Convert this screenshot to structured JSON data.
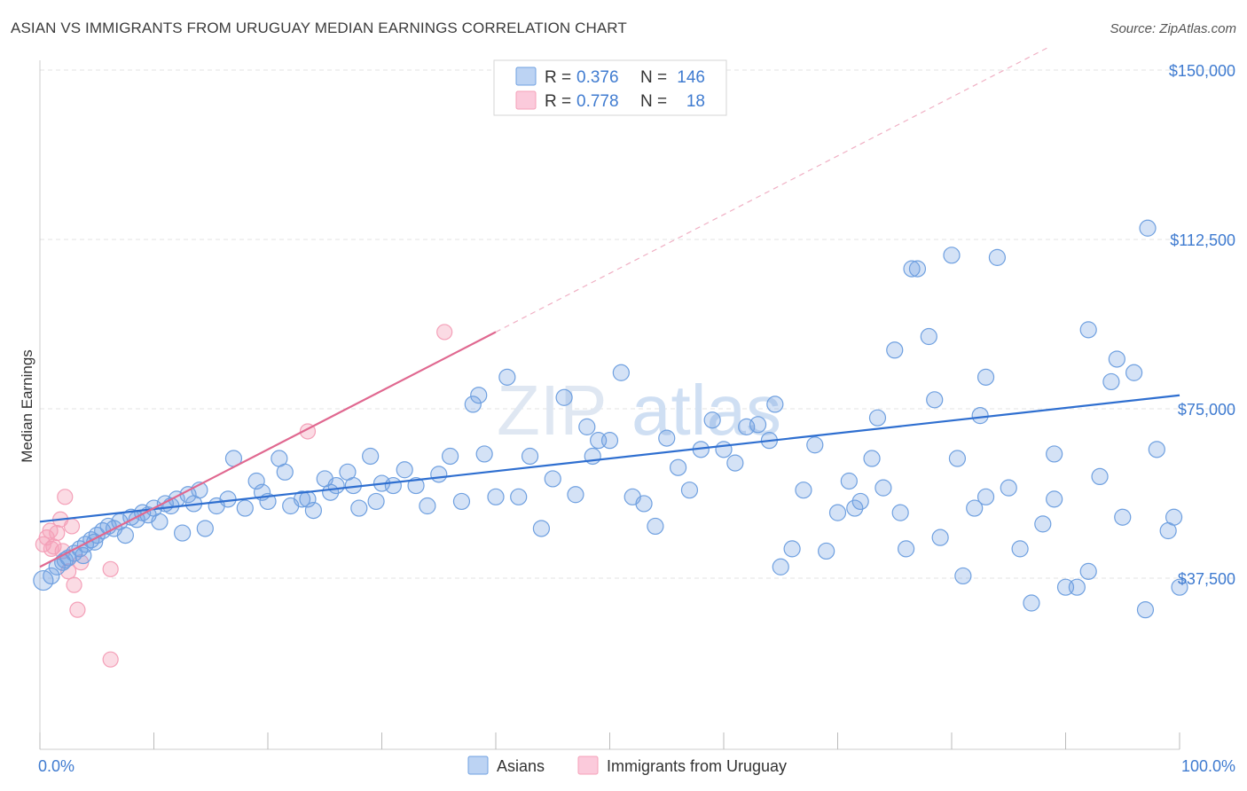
{
  "title": "ASIAN VS IMMIGRANTS FROM URUGUAY MEDIAN EARNINGS CORRELATION CHART",
  "source": "Source: ZipAtlas.com",
  "watermark": {
    "zip": "ZIP",
    "atlas": "atlas"
  },
  "colors": {
    "asian": "#6fa0e0",
    "asian_line": "#2f6fd0",
    "uruguay": "#f4a0b8",
    "uruguay_line": "#e06890"
  },
  "legend": {
    "r_label": "R =",
    "n_label": "N =",
    "asian": {
      "r": "0.376",
      "n": "146"
    },
    "uruguay": {
      "r": "0.778",
      "n": "18"
    }
  },
  "chart_data": {
    "type": "scatter",
    "title": "ASIAN VS IMMIGRANTS FROM URUGUAY MEDIAN EARNINGS CORRELATION CHART",
    "xlabel": "",
    "ylabel": "Median Earnings",
    "xlim": [
      0,
      100
    ],
    "ylim": [
      0,
      155000
    ],
    "x_tick_labels": [
      "0.0%",
      "100.0%"
    ],
    "y_ticks": [
      {
        "value": 37500,
        "label": "$37,500"
      },
      {
        "value": 75000,
        "label": "$75,000"
      },
      {
        "value": 112500,
        "label": "$112,500"
      },
      {
        "value": 150000,
        "label": "$150,000"
      }
    ],
    "series": [
      {
        "name": "Asians",
        "trend": {
          "x0": 0,
          "y0": 50000,
          "x1": 100,
          "y1": 78000
        },
        "points": [
          [
            0.3,
            37000
          ],
          [
            1,
            38000
          ],
          [
            1.5,
            40000
          ],
          [
            2,
            41000
          ],
          [
            2.5,
            42000
          ],
          [
            3,
            43000
          ],
          [
            3.5,
            44000
          ],
          [
            4,
            45000
          ],
          [
            4.5,
            46000
          ],
          [
            5,
            47000
          ],
          [
            5.5,
            48000
          ],
          [
            6,
            49000
          ],
          [
            7,
            50000
          ],
          [
            8,
            51000
          ],
          [
            9,
            52000
          ],
          [
            10,
            53000
          ],
          [
            11,
            54000
          ],
          [
            12,
            55000
          ],
          [
            13,
            56000
          ],
          [
            14,
            57000
          ],
          [
            2.2,
            41500
          ],
          [
            3.8,
            42500
          ],
          [
            4.8,
            45500
          ],
          [
            6.5,
            48500
          ],
          [
            7.5,
            47000
          ],
          [
            8.5,
            50500
          ],
          [
            9.5,
            51500
          ],
          [
            10.5,
            50000
          ],
          [
            11.5,
            53500
          ],
          [
            12.5,
            47500
          ],
          [
            13.5,
            54000
          ],
          [
            14.5,
            48500
          ],
          [
            15.5,
            53500
          ],
          [
            16.5,
            55000
          ],
          [
            17,
            64000
          ],
          [
            18,
            53000
          ],
          [
            19,
            59000
          ],
          [
            19.5,
            56500
          ],
          [
            20,
            54500
          ],
          [
            21,
            64000
          ],
          [
            21.5,
            61000
          ],
          [
            22,
            53500
          ],
          [
            23,
            55000
          ],
          [
            23.5,
            55000
          ],
          [
            24,
            52500
          ],
          [
            25,
            59500
          ],
          [
            25.5,
            56500
          ],
          [
            26,
            58000
          ],
          [
            27,
            61000
          ],
          [
            27.5,
            58000
          ],
          [
            28,
            53000
          ],
          [
            29,
            64500
          ],
          [
            29.5,
            54500
          ],
          [
            30,
            58500
          ],
          [
            31,
            58000
          ],
          [
            32,
            61500
          ],
          [
            33,
            58000
          ],
          [
            34,
            53500
          ],
          [
            35,
            60500
          ],
          [
            36,
            64500
          ],
          [
            37,
            54500
          ],
          [
            38,
            76000
          ],
          [
            38.5,
            78000
          ],
          [
            39,
            65000
          ],
          [
            40,
            55500
          ],
          [
            41,
            82000
          ],
          [
            42,
            55500
          ],
          [
            43,
            64500
          ],
          [
            44,
            48500
          ],
          [
            45,
            59500
          ],
          [
            46,
            77500
          ],
          [
            47,
            56000
          ],
          [
            48,
            71000
          ],
          [
            48.5,
            64500
          ],
          [
            49,
            68000
          ],
          [
            50,
            68000
          ],
          [
            51,
            83000
          ],
          [
            52,
            55500
          ],
          [
            53,
            54000
          ],
          [
            54,
            49000
          ],
          [
            55,
            68500
          ],
          [
            56,
            62000
          ],
          [
            57,
            57000
          ],
          [
            58,
            66000
          ],
          [
            59,
            72500
          ],
          [
            60,
            66000
          ],
          [
            61,
            63000
          ],
          [
            62,
            71000
          ],
          [
            63,
            71500
          ],
          [
            64,
            68000
          ],
          [
            65,
            40000
          ],
          [
            66,
            44000
          ],
          [
            67,
            57000
          ],
          [
            68,
            67000
          ],
          [
            69,
            43500
          ],
          [
            70,
            52000
          ],
          [
            71,
            59000
          ],
          [
            72,
            54500
          ],
          [
            73,
            64000
          ],
          [
            74,
            57500
          ],
          [
            75,
            88000
          ],
          [
            76,
            44000
          ],
          [
            77,
            106000
          ],
          [
            78,
            91000
          ],
          [
            79,
            46500
          ],
          [
            80,
            109000
          ],
          [
            81,
            38000
          ],
          [
            82,
            53000
          ],
          [
            83,
            55500
          ],
          [
            84,
            108500
          ],
          [
            85,
            57500
          ],
          [
            86,
            44000
          ],
          [
            87,
            32000
          ],
          [
            88,
            49500
          ],
          [
            89,
            65000
          ],
          [
            90,
            35500
          ],
          [
            91,
            35500
          ],
          [
            92,
            39000
          ],
          [
            93,
            60000
          ],
          [
            94,
            81000
          ],
          [
            95,
            51000
          ],
          [
            96,
            83000
          ],
          [
            97,
            30500
          ],
          [
            98,
            66000
          ],
          [
            99,
            48000
          ],
          [
            100,
            35500
          ],
          [
            78.5,
            77000
          ],
          [
            73.5,
            73000
          ],
          [
            71.5,
            53000
          ],
          [
            75.5,
            52000
          ],
          [
            82.5,
            73500
          ],
          [
            80.5,
            64000
          ],
          [
            64.5,
            76000
          ],
          [
            83,
            82000
          ],
          [
            89,
            55000
          ],
          [
            92,
            92500
          ],
          [
            99.5,
            51000
          ],
          [
            76.5,
            106000
          ],
          [
            97.2,
            115000
          ],
          [
            94.5,
            86000
          ]
        ]
      },
      {
        "name": "Immigrants from Uruguay",
        "trend": {
          "x0": 0,
          "y0": 40000,
          "x1": 40,
          "y1": 92000
        },
        "points": [
          [
            0.3,
            45000
          ],
          [
            0.6,
            46500
          ],
          [
            0.9,
            48000
          ],
          [
            1.2,
            44500
          ],
          [
            1.5,
            47500
          ],
          [
            1.8,
            50500
          ],
          [
            2,
            43500
          ],
          [
            2.2,
            55500
          ],
          [
            2.5,
            39000
          ],
          [
            2.8,
            49000
          ],
          [
            3,
            36000
          ],
          [
            3.3,
            30500
          ],
          [
            3.6,
            41000
          ],
          [
            6.2,
            19500
          ],
          [
            6.2,
            39500
          ],
          [
            23.5,
            70000
          ],
          [
            35.5,
            92000
          ],
          [
            1,
            44000
          ]
        ]
      }
    ]
  },
  "bottom_legend": {
    "asian": "Asians",
    "uruguay": "Immigrants from Uruguay"
  }
}
